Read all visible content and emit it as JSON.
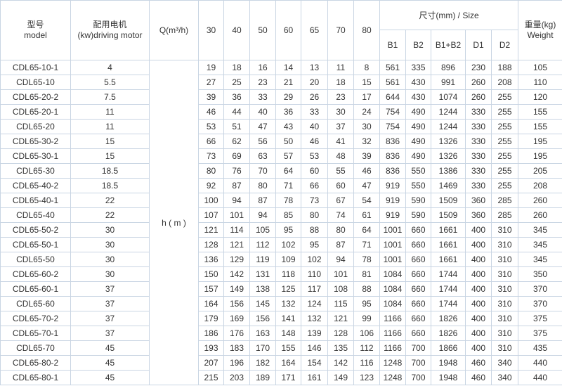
{
  "header": {
    "model": [
      "型号",
      "model"
    ],
    "motor": [
      "配用电机",
      "(kw)driving motor"
    ],
    "flow_label": "Q(m³/h)",
    "flows": [
      30,
      40,
      50,
      60,
      65,
      70,
      80
    ],
    "size_label": "尺寸(mm) / Size",
    "size_columns": [
      "B1",
      "B2",
      "B1+B2",
      "D1",
      "D2"
    ],
    "weight": [
      "重量(kg)",
      "Weight"
    ],
    "head_label": "h ( m )"
  },
  "rows": [
    {
      "model": "CDL65-10-1",
      "motor": 4,
      "heads": [
        19,
        18,
        16,
        14,
        13,
        11,
        8
      ],
      "size": [
        561,
        335,
        896,
        230,
        188
      ],
      "weight": 105
    },
    {
      "model": "CDL65-10",
      "motor": 5.5,
      "heads": [
        27,
        25,
        23,
        21,
        20,
        18,
        15
      ],
      "size": [
        561,
        430,
        991,
        260,
        208
      ],
      "weight": 110
    },
    {
      "model": "CDL65-20-2",
      "motor": 7.5,
      "heads": [
        39,
        36,
        33,
        29,
        26,
        23,
        17
      ],
      "size": [
        644,
        430,
        1074,
        260,
        255
      ],
      "weight": 120
    },
    {
      "model": "CDL65-20-1",
      "motor": 11,
      "heads": [
        46,
        44,
        40,
        36,
        33,
        30,
        24
      ],
      "size": [
        754,
        490,
        1244,
        330,
        255
      ],
      "weight": 155
    },
    {
      "model": "CDL65-20",
      "motor": 11,
      "heads": [
        53,
        51,
        47,
        43,
        40,
        37,
        30
      ],
      "size": [
        754,
        490,
        1244,
        330,
        255
      ],
      "weight": 155
    },
    {
      "model": "CDL65-30-2",
      "motor": 15,
      "heads": [
        66,
        62,
        56,
        50,
        46,
        41,
        32
      ],
      "size": [
        836,
        490,
        1326,
        330,
        255
      ],
      "weight": 195
    },
    {
      "model": "CDL65-30-1",
      "motor": 15,
      "heads": [
        73,
        69,
        63,
        57,
        53,
        48,
        39
      ],
      "size": [
        836,
        490,
        1326,
        330,
        255
      ],
      "weight": 195
    },
    {
      "model": "CDL65-30",
      "motor": 18.5,
      "heads": [
        80,
        76,
        70,
        64,
        60,
        55,
        46
      ],
      "size": [
        836,
        550,
        1386,
        330,
        255
      ],
      "weight": 205
    },
    {
      "model": "CDL65-40-2",
      "motor": 18.5,
      "heads": [
        92,
        87,
        80,
        71,
        66,
        60,
        47
      ],
      "size": [
        919,
        550,
        1469,
        330,
        255
      ],
      "weight": 208
    },
    {
      "model": "CDL65-40-1",
      "motor": 22,
      "heads": [
        100,
        94,
        87,
        78,
        73,
        67,
        54
      ],
      "size": [
        919,
        590,
        1509,
        360,
        285
      ],
      "weight": 260
    },
    {
      "model": "CDL65-40",
      "motor": 22,
      "heads": [
        107,
        101,
        94,
        85,
        80,
        74,
        61
      ],
      "size": [
        919,
        590,
        1509,
        360,
        285
      ],
      "weight": 260
    },
    {
      "model": "CDL65-50-2",
      "motor": 30,
      "heads": [
        121,
        114,
        105,
        95,
        88,
        80,
        64
      ],
      "size": [
        1001,
        660,
        1661,
        400,
        310
      ],
      "weight": 345
    },
    {
      "model": "CDL65-50-1",
      "motor": 30,
      "heads": [
        128,
        121,
        112,
        102,
        95,
        87,
        71
      ],
      "size": [
        1001,
        660,
        1661,
        400,
        310
      ],
      "weight": 345
    },
    {
      "model": "CDL65-50",
      "motor": 30,
      "heads": [
        136,
        129,
        119,
        109,
        102,
        94,
        78
      ],
      "size": [
        1001,
        660,
        1661,
        400,
        310
      ],
      "weight": 345
    },
    {
      "model": "CDL65-60-2",
      "motor": 30,
      "heads": [
        150,
        142,
        131,
        118,
        110,
        101,
        81
      ],
      "size": [
        1084,
        660,
        1744,
        400,
        310
      ],
      "weight": 350
    },
    {
      "model": "CDL65-60-1",
      "motor": 37,
      "heads": [
        157,
        149,
        138,
        125,
        117,
        108,
        88
      ],
      "size": [
        1084,
        660,
        1744,
        400,
        310
      ],
      "weight": 370
    },
    {
      "model": "CDL65-60",
      "motor": 37,
      "heads": [
        164,
        156,
        145,
        132,
        124,
        115,
        95
      ],
      "size": [
        1084,
        660,
        1744,
        400,
        310
      ],
      "weight": 370
    },
    {
      "model": "CDL65-70-2",
      "motor": 37,
      "heads": [
        179,
        169,
        156,
        141,
        132,
        121,
        99
      ],
      "size": [
        1166,
        660,
        1826,
        400,
        310
      ],
      "weight": 375
    },
    {
      "model": "CDL65-70-1",
      "motor": 37,
      "heads": [
        186,
        176,
        163,
        148,
        139,
        128,
        106
      ],
      "size": [
        1166,
        660,
        1826,
        400,
        310
      ],
      "weight": 375
    },
    {
      "model": "CDL65-70",
      "motor": 45,
      "heads": [
        193,
        183,
        170,
        155,
        146,
        135,
        112
      ],
      "size": [
        1166,
        700,
        1866,
        400,
        310
      ],
      "weight": 435
    },
    {
      "model": "CDL65-80-2",
      "motor": 45,
      "heads": [
        207,
        196,
        182,
        164,
        154,
        142,
        116
      ],
      "size": [
        1248,
        700,
        1948,
        460,
        340
      ],
      "weight": 440
    },
    {
      "model": "CDL65-80-1",
      "motor": 45,
      "heads": [
        215,
        203,
        189,
        171,
        161,
        149,
        123
      ],
      "size": [
        1248,
        700,
        1948,
        460,
        340
      ],
      "weight": 440
    }
  ]
}
